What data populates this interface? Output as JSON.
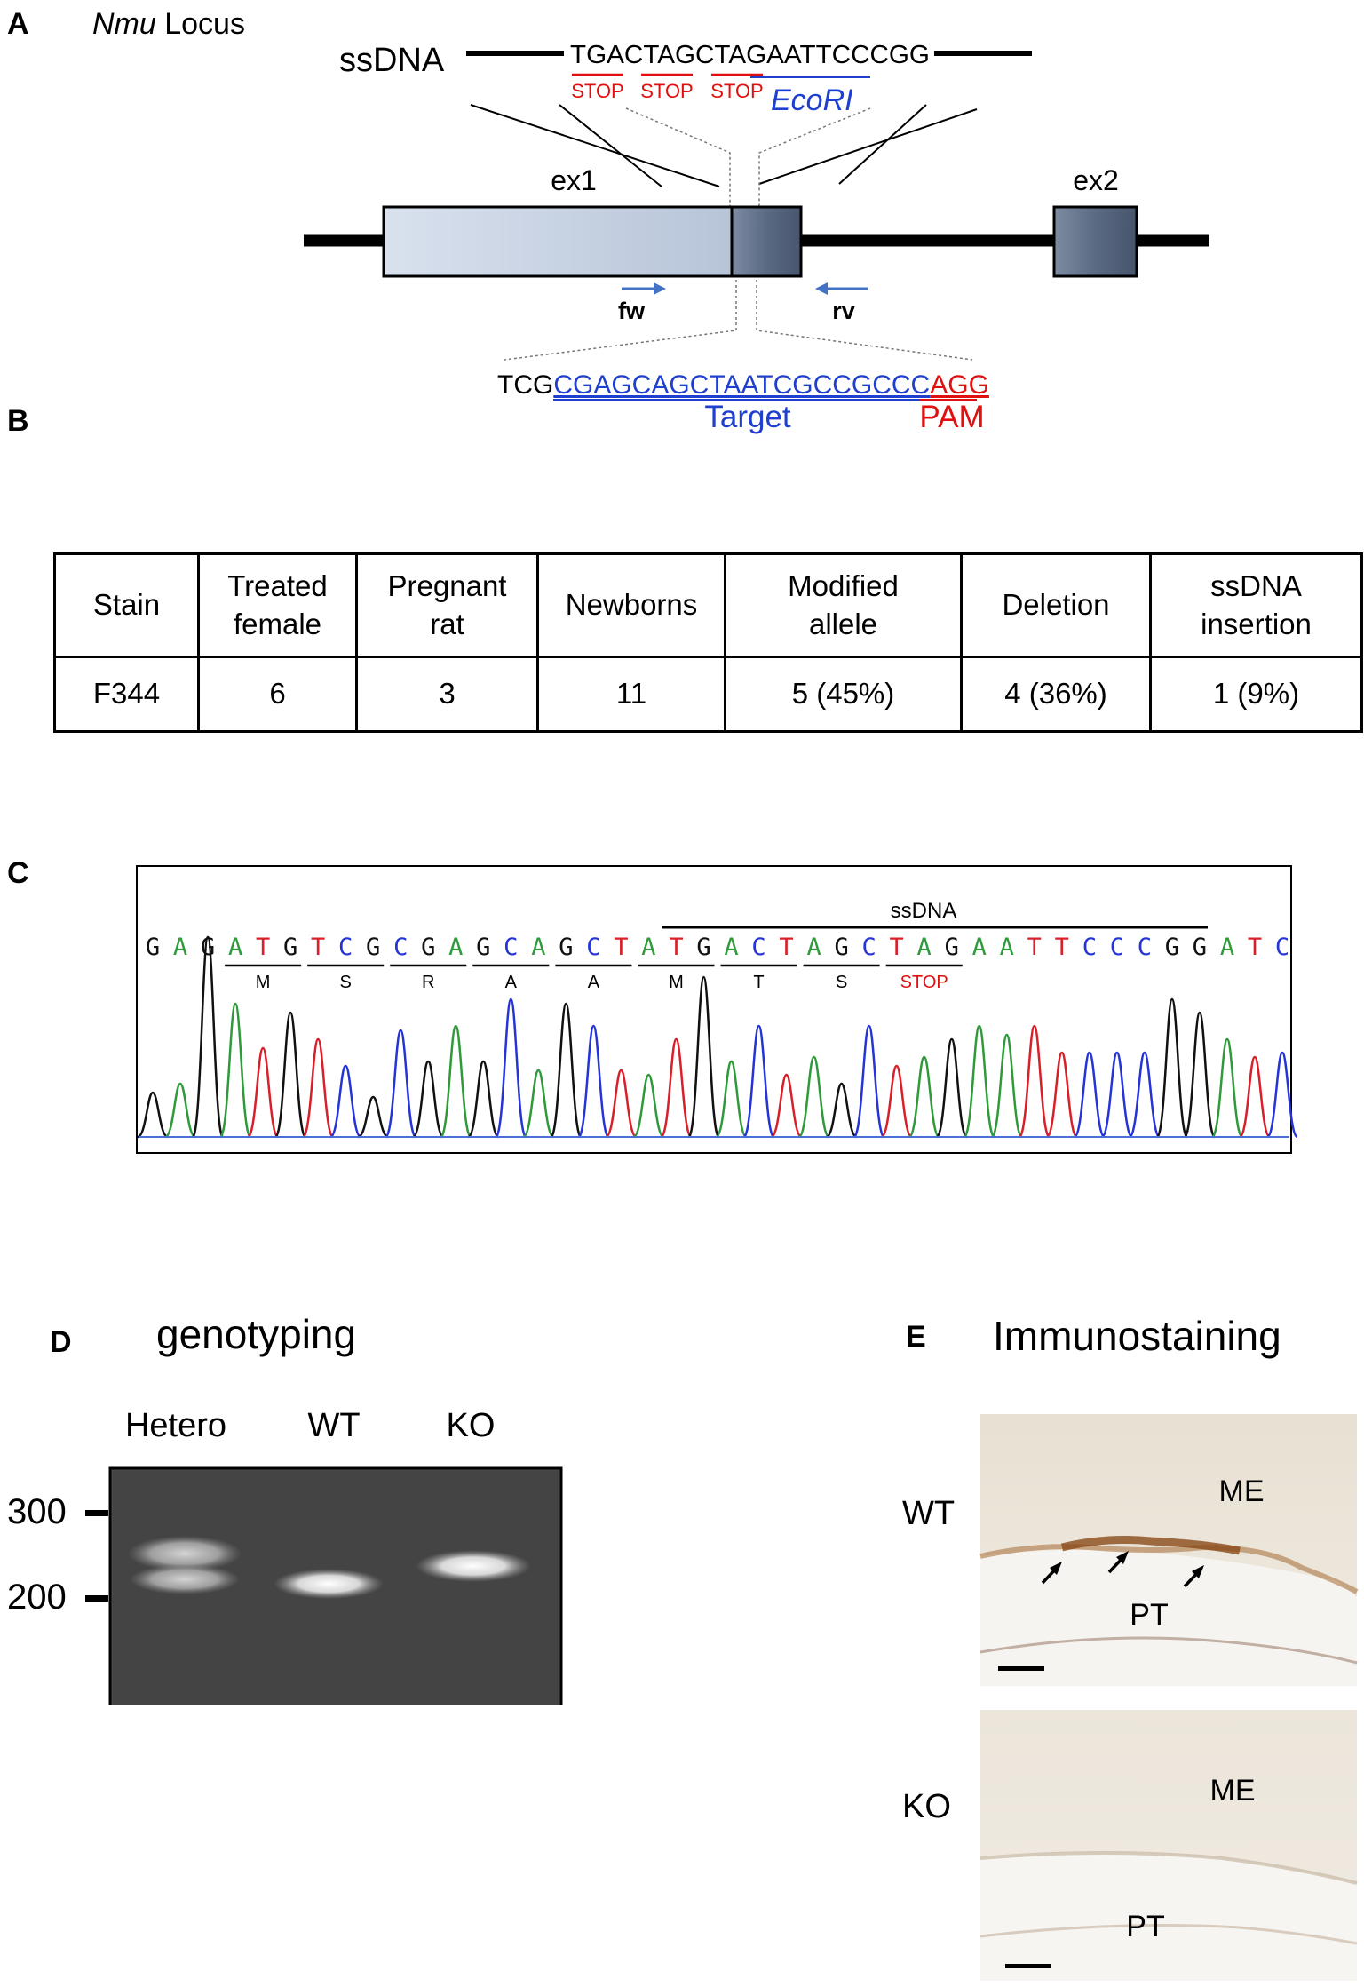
{
  "panels": {
    "a": {
      "letter": "A",
      "locus_italic": "Nmu",
      "locus_rest": " Locus",
      "ssdna_label": "ssDNA",
      "ssdna_seq": "TGACTAGCTAGAATTCCCGG",
      "stop_labels": [
        "STOP",
        "STOP",
        "STOP"
      ],
      "ecori": "EcoRI",
      "ex1": "ex1",
      "ex2": "ex2",
      "fw": "fw",
      "rv": "rv",
      "seq_prefix": "TCG",
      "seq_target": "CGAGCAGCTAATCGCCGCCC",
      "seq_pam": "AGG",
      "target_label": "Target",
      "pam_label": "PAM"
    },
    "b": {
      "letter": "B",
      "headers": [
        [
          "Stain"
        ],
        [
          "Treated",
          "female"
        ],
        [
          "Pregnant",
          "rat"
        ],
        [
          "Newborns"
        ],
        [
          "Modified",
          "allele"
        ],
        [
          "Deletion"
        ],
        [
          "ssDNA",
          "insertion"
        ]
      ],
      "row": [
        "F344",
        "6",
        "3",
        "11",
        "5 (45%)",
        "4 (36%)",
        "1 (9%)"
      ]
    },
    "c": {
      "letter": "C",
      "ssdna_label": "ssDNA",
      "bases": [
        "G",
        "A",
        "G",
        "A",
        "T",
        "G",
        "T",
        "C",
        "G",
        "C",
        "G",
        "A",
        "G",
        "C",
        "A",
        "G",
        "C",
        "T",
        "A",
        "T",
        "G",
        "A",
        "C",
        "T",
        "A",
        "G",
        "C",
        "T",
        "A",
        "G",
        "A",
        "A",
        "T",
        "T",
        "C",
        "C",
        "C",
        "G",
        "G",
        "A",
        "T",
        "C"
      ],
      "codons": [
        "M",
        "S",
        "R",
        "A",
        "A",
        "M",
        "T",
        "S",
        "STOP"
      ],
      "base_colors": {
        "A": "#2e9a3a",
        "C": "#2434d6",
        "G": "#111111",
        "T": "#d81f2a"
      },
      "stop_color": "#e01010"
    },
    "d": {
      "letter": "D",
      "title": "genotyping",
      "lanes": [
        "Hetero",
        "WT",
        "KO"
      ],
      "markers": [
        "300",
        "200"
      ]
    },
    "e": {
      "letter": "E",
      "title": "Immunostaining",
      "rows": [
        "WT",
        "KO"
      ],
      "me_label": "ME",
      "pt_label": "PT"
    }
  },
  "colors": {
    "stop_red": "#e01010",
    "target_blue": "#1f3fcf",
    "arrow_blue": "#4472c4",
    "ex1_fill": "#d3dceb",
    "exon_dark": "#5d6e86"
  }
}
